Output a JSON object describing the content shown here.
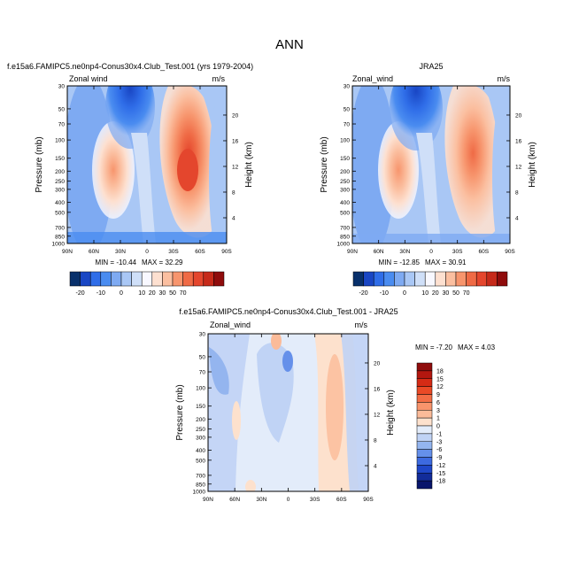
{
  "figure": {
    "title": "ANN"
  },
  "chart_data": [
    {
      "type": "heatmap",
      "id": "model",
      "title": "f.e15a6.FAMIPC5.ne0np4-Conus30x4.Club_Test.001 (yrs 1979-2004)",
      "var_label": "Zonal wind",
      "units": "m/s",
      "ylabel": "Pressure (mb)",
      "ylabel_right": "Height (km)",
      "x_ticks": [
        "90N",
        "60N",
        "30N",
        "0",
        "30S",
        "60S",
        "90S"
      ],
      "y_ticks": [
        "30",
        "50",
        "70",
        "100",
        "150",
        "200",
        "250",
        "300",
        "400",
        "500",
        "700",
        "850",
        "1000"
      ],
      "height_ticks": [
        "20",
        "16",
        "12",
        "8",
        "4"
      ],
      "min_label": "MIN = -10.44",
      "max_label": "MAX = 32.29",
      "min": -10.44,
      "max": 32.29
    },
    {
      "type": "heatmap",
      "id": "obs",
      "title": "JRA25",
      "var_label": "Zonal_wind",
      "units": "m/s",
      "ylabel": "Pressure (mb)",
      "ylabel_right": "Height (km)",
      "x_ticks": [
        "90N",
        "60N",
        "30N",
        "0",
        "30S",
        "60S",
        "90S"
      ],
      "y_ticks": [
        "30",
        "50",
        "70",
        "100",
        "150",
        "200",
        "250",
        "300",
        "400",
        "500",
        "700",
        "850",
        "1000"
      ],
      "height_ticks": [
        "20",
        "16",
        "12",
        "8",
        "4"
      ],
      "min_label": "MIN = -12.85",
      "max_label": "MAX = 30.91",
      "min": -12.85,
      "max": 30.91
    },
    {
      "type": "heatmap",
      "id": "diff",
      "title": "f.e15a6.FAMIPC5.ne0np4-Conus30x4.Club_Test.001 - JRA25",
      "var_label": "Zonal_wind",
      "units": "m/s",
      "ylabel": "Pressure (mb)",
      "ylabel_right": "Height (km)",
      "x_ticks": [
        "90N",
        "60N",
        "30N",
        "0",
        "30S",
        "60S",
        "90S"
      ],
      "y_ticks": [
        "30",
        "50",
        "70",
        "100",
        "150",
        "200",
        "250",
        "300",
        "400",
        "500",
        "700",
        "850",
        "1000"
      ],
      "height_ticks": [
        "20",
        "16",
        "12",
        "8",
        "4"
      ],
      "min_label": "MIN = -7.20",
      "max_label": "MAX =  4.03",
      "min": -7.2,
      "max": 4.03
    }
  ],
  "colorbars": {
    "main": {
      "levels": [
        -20,
        -10,
        0,
        10,
        20,
        30,
        50,
        70
      ],
      "tick_labels": [
        "-20",
        "-10",
        "0",
        "10",
        "20",
        "30",
        "50",
        "70"
      ],
      "colors": [
        "#08306b",
        "#1946c4",
        "#2f6de8",
        "#4a8cf0",
        "#7eaaf2",
        "#a9c7f5",
        "#cfdff8",
        "#f8f8ff",
        "#fde0d0",
        "#fbbfa0",
        "#f7956d",
        "#ef6a45",
        "#e4462d",
        "#c62a1a",
        "#8f0c0c"
      ]
    },
    "diff": {
      "tick_labels": [
        "18",
        "15",
        "12",
        "9",
        "6",
        "3",
        "1",
        "0",
        "-1",
        "-3",
        "-6",
        "-9",
        "-12",
        "-15",
        "-18"
      ],
      "colors": [
        "#8f0c0c",
        "#b3170f",
        "#d52b15",
        "#ea4a26",
        "#f36d45",
        "#f8946c",
        "#fbbb99",
        "#fde1cd",
        "#e3ecfa",
        "#c0d3f5",
        "#94b5ef",
        "#6590ea",
        "#3d6ae0",
        "#1f47c8",
        "#122c9a",
        "#08156b"
      ]
    }
  }
}
